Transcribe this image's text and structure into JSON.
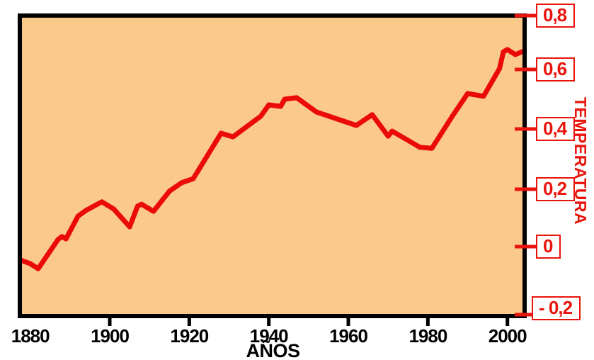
{
  "chart_data": {
    "type": "line",
    "title": "",
    "xlabel": "AÑOS",
    "ylabel": "TEMPERATURA",
    "xlim": [
      1877,
      2004
    ],
    "ylim": [
      -0.2,
      0.8
    ],
    "grid": false,
    "legend": "none",
    "x_ticks": [
      {
        "label": "1880",
        "year": 1880,
        "mark": false
      },
      {
        "label": "1900",
        "year": 1900,
        "mark": true
      },
      {
        "label": "1920",
        "year": 1920,
        "mark": true
      },
      {
        "label": "1940",
        "year": 1940,
        "mark": true
      },
      {
        "label": "1960",
        "year": 1960,
        "mark": true
      },
      {
        "label": "1980",
        "year": 1980,
        "mark": true
      },
      {
        "label": "2000",
        "year": 2000,
        "mark": true
      }
    ],
    "y_ticks": [
      {
        "label": "0,8",
        "value": 0.8
      },
      {
        "label": "0,6",
        "value": 0.6
      },
      {
        "label": "0,4",
        "value": 0.4
      },
      {
        "label": "0,2",
        "value": 0.2
      },
      {
        "label": "0",
        "value": 0.0
      },
      {
        "label": "- 0,2",
        "value": -0.2
      }
    ],
    "series": [
      {
        "name": "temperatura",
        "color": "#eb0a0a",
        "points": [
          [
            1877,
            -0.037
          ],
          [
            1880,
            -0.05
          ],
          [
            1882,
            -0.065
          ],
          [
            1887,
            0.025
          ],
          [
            1888,
            0.035
          ],
          [
            1889,
            0.027
          ],
          [
            1892,
            0.106
          ],
          [
            1894,
            0.126
          ],
          [
            1898,
            0.156
          ],
          [
            1901,
            0.131
          ],
          [
            1905,
            0.069
          ],
          [
            1907,
            0.141
          ],
          [
            1908,
            0.148
          ],
          [
            1911,
            0.123
          ],
          [
            1915,
            0.193
          ],
          [
            1918,
            0.221
          ],
          [
            1921,
            0.235
          ],
          [
            1928,
            0.386
          ],
          [
            1931,
            0.374
          ],
          [
            1938,
            0.443
          ],
          [
            1940,
            0.481
          ],
          [
            1943,
            0.476
          ],
          [
            1944,
            0.5
          ],
          [
            1947,
            0.505
          ],
          [
            1952,
            0.457
          ],
          [
            1962,
            0.412
          ],
          [
            1966,
            0.448
          ],
          [
            1970,
            0.376
          ],
          [
            1971,
            0.393
          ],
          [
            1978,
            0.339
          ],
          [
            1981,
            0.336
          ],
          [
            1986,
            0.44
          ],
          [
            1990,
            0.519
          ],
          [
            1994,
            0.51
          ],
          [
            1998,
            0.603
          ],
          [
            1999,
            0.666
          ],
          [
            2000,
            0.674
          ],
          [
            2002,
            0.655
          ],
          [
            2004,
            0.668
          ]
        ]
      }
    ],
    "colors": {
      "plot_background": "#fbc98a",
      "line": "#eb0a0a",
      "axis_label_red": "#e8150c",
      "axis_black": "#000000"
    }
  }
}
